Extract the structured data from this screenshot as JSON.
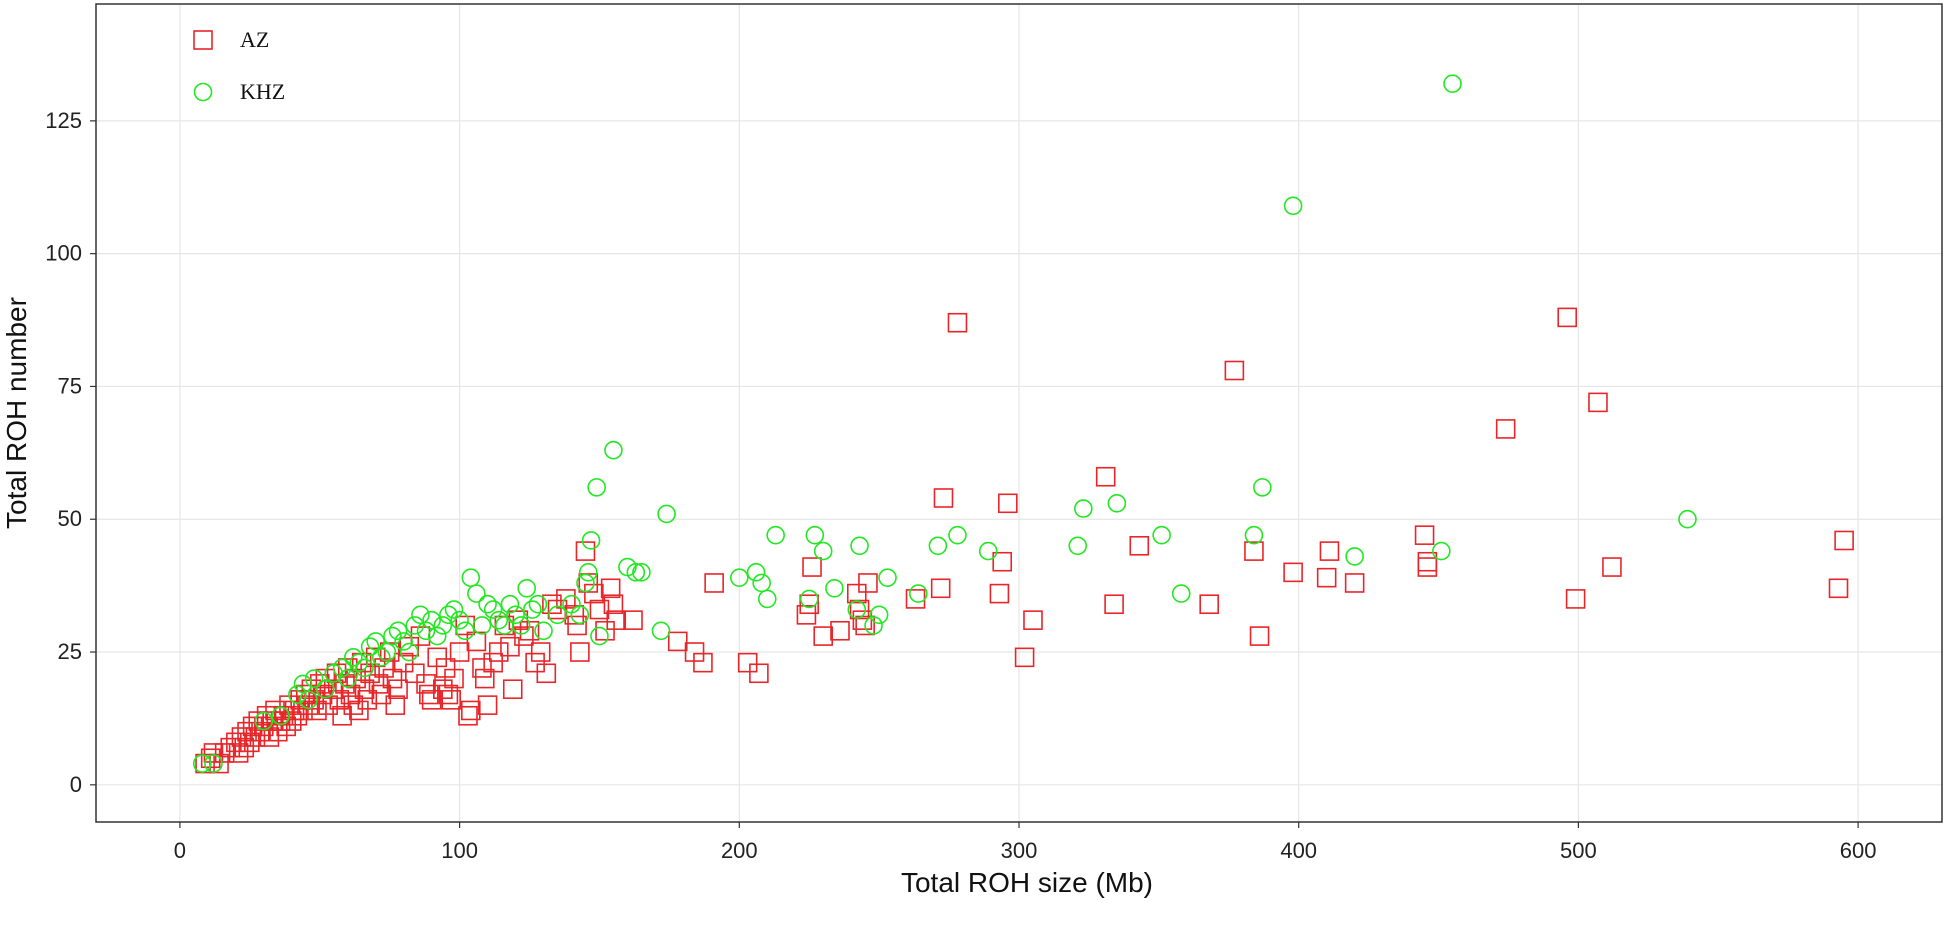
{
  "chart_data": {
    "type": "scatter",
    "title": "",
    "xlabel": "Total ROH size (Mb)",
    "ylabel": "Total ROH number",
    "xlim": [
      -30,
      630
    ],
    "ylim": [
      -7,
      147
    ],
    "xticks": [
      0,
      100,
      200,
      300,
      400,
      500,
      600
    ],
    "yticks": [
      0,
      25,
      50,
      75,
      100,
      125
    ],
    "grid": true,
    "legend": {
      "position": "top-left"
    },
    "series": [
      {
        "name": "AZ",
        "marker": "square",
        "color": "#e8262a",
        "points": [
          [
            9,
            4
          ],
          [
            11,
            5
          ],
          [
            12,
            6
          ],
          [
            14,
            4
          ],
          [
            16,
            6
          ],
          [
            18,
            7
          ],
          [
            20,
            8
          ],
          [
            21,
            6
          ],
          [
            22,
            9
          ],
          [
            23,
            7
          ],
          [
            24,
            10
          ],
          [
            25,
            8
          ],
          [
            26,
            11
          ],
          [
            27,
            9
          ],
          [
            28,
            12
          ],
          [
            29,
            10
          ],
          [
            30,
            11
          ],
          [
            31,
            13
          ],
          [
            32,
            9
          ],
          [
            33,
            12
          ],
          [
            34,
            14
          ],
          [
            35,
            10
          ],
          [
            36,
            12
          ],
          [
            37,
            13
          ],
          [
            38,
            11
          ],
          [
            39,
            15
          ],
          [
            40,
            12
          ],
          [
            41,
            14
          ],
          [
            42,
            13
          ],
          [
            43,
            16
          ],
          [
            44,
            14
          ],
          [
            45,
            17
          ],
          [
            46,
            15
          ],
          [
            47,
            18
          ],
          [
            48,
            16
          ],
          [
            49,
            14
          ],
          [
            50,
            19
          ],
          [
            51,
            17
          ],
          [
            52,
            20
          ],
          [
            53,
            15
          ],
          [
            55,
            18
          ],
          [
            56,
            21
          ],
          [
            57,
            16
          ],
          [
            58,
            13
          ],
          [
            59,
            19
          ],
          [
            60,
            22
          ],
          [
            61,
            17
          ],
          [
            62,
            15
          ],
          [
            63,
            20
          ],
          [
            64,
            14
          ],
          [
            65,
            23
          ],
          [
            66,
            18
          ],
          [
            67,
            16
          ],
          [
            68,
            21
          ],
          [
            70,
            24
          ],
          [
            71,
            19
          ],
          [
            72,
            17
          ],
          [
            73,
            22
          ],
          [
            75,
            25
          ],
          [
            76,
            20
          ],
          [
            77,
            15
          ],
          [
            78,
            18
          ],
          [
            80,
            23
          ],
          [
            82,
            26
          ],
          [
            84,
            21
          ],
          [
            86,
            28
          ],
          [
            88,
            19
          ],
          [
            89,
            17
          ],
          [
            90,
            16
          ],
          [
            92,
            24
          ],
          [
            94,
            18
          ],
          [
            95,
            22
          ],
          [
            96,
            17
          ],
          [
            97,
            16
          ],
          [
            98,
            20
          ],
          [
            100,
            25
          ],
          [
            102,
            30
          ],
          [
            103,
            13
          ],
          [
            104,
            14
          ],
          [
            106,
            27
          ],
          [
            108,
            22
          ],
          [
            109,
            20
          ],
          [
            110,
            15
          ],
          [
            112,
            23
          ],
          [
            114,
            25
          ],
          [
            116,
            30
          ],
          [
            118,
            26
          ],
          [
            119,
            18
          ],
          [
            121,
            31
          ],
          [
            123,
            28
          ],
          [
            125,
            29
          ],
          [
            127,
            23
          ],
          [
            129,
            25
          ],
          [
            131,
            21
          ],
          [
            133,
            34
          ],
          [
            135,
            33
          ],
          [
            138,
            35
          ],
          [
            141,
            32
          ],
          [
            142,
            30
          ],
          [
            143,
            25
          ],
          [
            145,
            44
          ],
          [
            146,
            38
          ],
          [
            148,
            36
          ],
          [
            150,
            33
          ],
          [
            152,
            29
          ],
          [
            154,
            37
          ],
          [
            155,
            34
          ],
          [
            156,
            31
          ],
          [
            162,
            31
          ],
          [
            178,
            27
          ],
          [
            184,
            25
          ],
          [
            187,
            23
          ],
          [
            191,
            38
          ],
          [
            203,
            23
          ],
          [
            207,
            21
          ],
          [
            224,
            32
          ],
          [
            225,
            34
          ],
          [
            226,
            41
          ],
          [
            230,
            28
          ],
          [
            236,
            29
          ],
          [
            242,
            36
          ],
          [
            243,
            33
          ],
          [
            244,
            31
          ],
          [
            245,
            30
          ],
          [
            246,
            38
          ],
          [
            263,
            35
          ],
          [
            272,
            37
          ],
          [
            273,
            54
          ],
          [
            278,
            87
          ],
          [
            293,
            36
          ],
          [
            294,
            42
          ],
          [
            296,
            53
          ],
          [
            302,
            24
          ],
          [
            305,
            31
          ],
          [
            331,
            58
          ],
          [
            334,
            34
          ],
          [
            343,
            45
          ],
          [
            368,
            34
          ],
          [
            377,
            78
          ],
          [
            384,
            44
          ],
          [
            386,
            28
          ],
          [
            398,
            40
          ],
          [
            410,
            39
          ],
          [
            411,
            44
          ],
          [
            420,
            38
          ],
          [
            445,
            47
          ],
          [
            446,
            41
          ],
          [
            446,
            42
          ],
          [
            474,
            67
          ],
          [
            496,
            88
          ],
          [
            499,
            35
          ],
          [
            507,
            72
          ],
          [
            512,
            41
          ],
          [
            593,
            37
          ],
          [
            595,
            46
          ]
        ]
      },
      {
        "name": "KHZ",
        "marker": "circle",
        "color": "#22e822",
        "points": [
          [
            8,
            4
          ],
          [
            12,
            4
          ],
          [
            30,
            12
          ],
          [
            36,
            13
          ],
          [
            42,
            17
          ],
          [
            44,
            19
          ],
          [
            46,
            16
          ],
          [
            48,
            20
          ],
          [
            52,
            18
          ],
          [
            55,
            21
          ],
          [
            58,
            22
          ],
          [
            60,
            20
          ],
          [
            62,
            24
          ],
          [
            64,
            23
          ],
          [
            66,
            22
          ],
          [
            68,
            26
          ],
          [
            70,
            27
          ],
          [
            72,
            24
          ],
          [
            74,
            25
          ],
          [
            76,
            28
          ],
          [
            78,
            29
          ],
          [
            80,
            27
          ],
          [
            82,
            25
          ],
          [
            84,
            30
          ],
          [
            86,
            32
          ],
          [
            88,
            29
          ],
          [
            90,
            31
          ],
          [
            92,
            28
          ],
          [
            94,
            30
          ],
          [
            96,
            32
          ],
          [
            98,
            33
          ],
          [
            100,
            31
          ],
          [
            102,
            29
          ],
          [
            104,
            39
          ],
          [
            106,
            36
          ],
          [
            108,
            30
          ],
          [
            110,
            34
          ],
          [
            112,
            33
          ],
          [
            114,
            31
          ],
          [
            116,
            30
          ],
          [
            118,
            34
          ],
          [
            120,
            32
          ],
          [
            122,
            30
          ],
          [
            124,
            37
          ],
          [
            126,
            33
          ],
          [
            128,
            34
          ],
          [
            130,
            29
          ],
          [
            135,
            32
          ],
          [
            140,
            34
          ],
          [
            143,
            32
          ],
          [
            145,
            38
          ],
          [
            146,
            40
          ],
          [
            147,
            46
          ],
          [
            149,
            56
          ],
          [
            150,
            28
          ],
          [
            155,
            63
          ],
          [
            160,
            41
          ],
          [
            163,
            40
          ],
          [
            165,
            40
          ],
          [
            172,
            29
          ],
          [
            174,
            51
          ],
          [
            200,
            39
          ],
          [
            206,
            40
          ],
          [
            208,
            38
          ],
          [
            210,
            35
          ],
          [
            213,
            47
          ],
          [
            225,
            35
          ],
          [
            227,
            47
          ],
          [
            230,
            44
          ],
          [
            234,
            37
          ],
          [
            242,
            33
          ],
          [
            243,
            45
          ],
          [
            248,
            30
          ],
          [
            250,
            32
          ],
          [
            253,
            39
          ],
          [
            264,
            36
          ],
          [
            271,
            45
          ],
          [
            278,
            47
          ],
          [
            289,
            44
          ],
          [
            321,
            45
          ],
          [
            323,
            52
          ],
          [
            335,
            53
          ],
          [
            351,
            47
          ],
          [
            358,
            36
          ],
          [
            384,
            47
          ],
          [
            387,
            56
          ],
          [
            398,
            109
          ],
          [
            420,
            43
          ],
          [
            451,
            44
          ],
          [
            455,
            132
          ],
          [
            539,
            50
          ]
        ]
      }
    ]
  }
}
